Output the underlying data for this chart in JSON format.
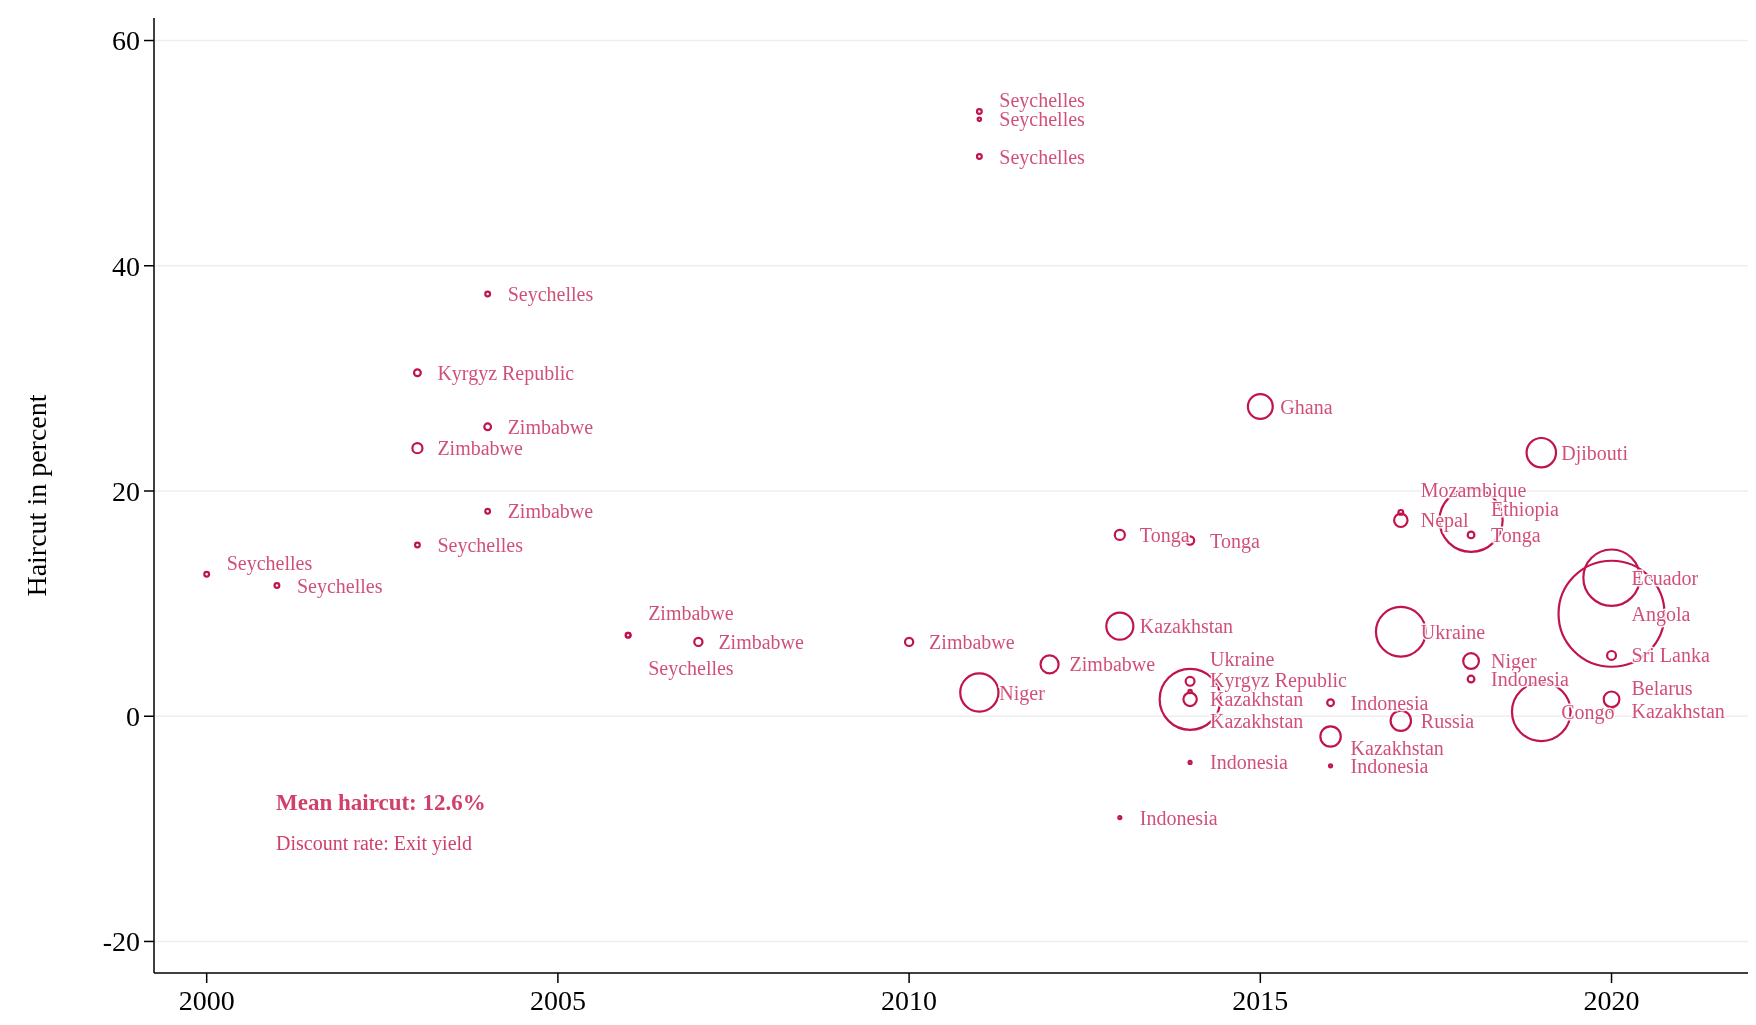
{
  "chart_data": {
    "type": "bubble",
    "ylabel": "Haircut in percent",
    "xlim": [
      1999.25,
      2021.9
    ],
    "xticks": [
      2000,
      2005,
      2010,
      2015,
      2020
    ],
    "ylim": [
      -22.8,
      62
    ],
    "yticks": [
      -20,
      0,
      20,
      40,
      60
    ],
    "grid": "y",
    "marker": "circle",
    "annotations": [
      "Mean haircut: 12.6%",
      "Discount rate: Exit yield"
    ],
    "series": [
      {
        "color": "#c0144a",
        "x": [
          2000,
          2001,
          2003,
          2003,
          2003,
          2004,
          2004,
          2004,
          2006,
          2006,
          2007,
          2010,
          2011,
          2011,
          2011,
          2011,
          2012,
          2013,
          2013,
          2013,
          2014,
          2014,
          2014,
          2014,
          2014,
          2014,
          2015,
          2016,
          2016,
          2016,
          2017,
          2017,
          2017,
          2017,
          2018,
          2018,
          2018,
          2018,
          2019,
          2019,
          2020,
          2020,
          2020,
          2020,
          2020
        ],
        "values": [
          12.6,
          11.6,
          30.5,
          23.8,
          15.2,
          37.5,
          25.7,
          18.2,
          7.2,
          7.2,
          6.6,
          6.6,
          53.7,
          53.0,
          49.7,
          2.1,
          4.6,
          16.1,
          8.0,
          -9.0,
          15.6,
          3.1,
          2.2,
          1.5,
          1.5,
          -4.1,
          27.5,
          1.2,
          -1.8,
          -4.4,
          18.1,
          17.4,
          7.5,
          -0.4,
          17.4,
          16.1,
          4.9,
          3.3,
          23.4,
          0.4,
          12.3,
          9.1,
          5.4,
          1.5,
          0.5
        ],
        "sizes": [
          0.002,
          0.002,
          0.004,
          0.009,
          0.002,
          0.002,
          0.004,
          0.002,
          0.002,
          0.002,
          0.006,
          0.006,
          0.002,
          0.001,
          0.002,
          0.13,
          0.029,
          0.009,
          0.065,
          0.0005,
          0.006,
          0.007,
          0.001,
          0.33,
          0.016,
          0.0005,
          0.055,
          0.004,
          0.037,
          0.0005,
          0.002,
          0.016,
          0.22,
          0.037,
          0.355,
          0.004,
          0.022,
          0.004,
          0.077,
          0.306,
          0.283,
          1,
          0.007,
          0.022,
          0.001
        ],
        "value_labels": [
          "Seychelles",
          "Seychelles",
          "Kyrgyz Republic",
          "Zimbabwe",
          "Seychelles",
          "Seychelles",
          "Zimbabwe",
          "Zimbabwe",
          "Seychelles",
          "Zimbabwe",
          "Zimbabwe",
          "Zimbabwe",
          "Seychelles",
          "Seychelles",
          "Seychelles",
          "Niger",
          "Zimbabwe",
          "Tonga",
          "Kazakhstan",
          "Indonesia",
          "Tonga",
          "Ukraine",
          "Kyrgyz Republic",
          "Kazakhstan",
          "Kazakhstan",
          "Indonesia",
          "Ghana",
          "Indonesia",
          "Kazakhstan",
          "Indonesia",
          "Mozambique",
          "Nepal",
          "Ukraine",
          "Russia",
          "Ethiopia",
          "Tonga",
          "Niger",
          "Indonesia",
          "Djibouti",
          "Congo",
          "Ecuador",
          "Angola",
          "Sri Lanka",
          "Belarus",
          "Kazakhstan"
        ]
      }
    ]
  }
}
